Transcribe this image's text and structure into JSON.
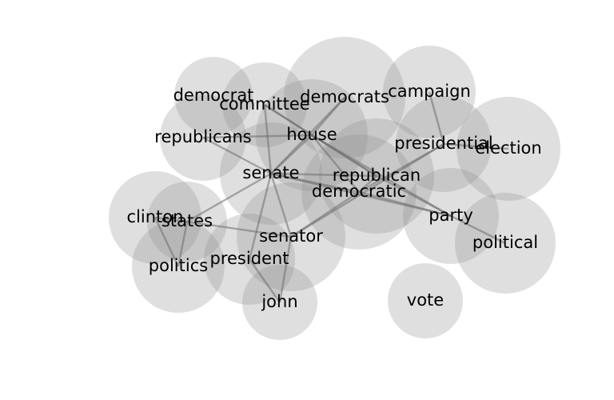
{
  "chart_data": {
    "type": "network",
    "title": "",
    "nodes": [
      {
        "id": "democrat",
        "label": "democrat"
      },
      {
        "id": "committee",
        "label": "committee"
      },
      {
        "id": "democrats",
        "label": "democrats"
      },
      {
        "id": "campaign",
        "label": "campaign"
      },
      {
        "id": "republicans",
        "label": "republicans"
      },
      {
        "id": "house",
        "label": "house"
      },
      {
        "id": "presidential",
        "label": "presidential"
      },
      {
        "id": "election",
        "label": "election"
      },
      {
        "id": "senate",
        "label": "senate"
      },
      {
        "id": "republican",
        "label": "republican"
      },
      {
        "id": "democratic",
        "label": "democratic"
      },
      {
        "id": "clinton",
        "label": "clinton"
      },
      {
        "id": "states",
        "label": "states"
      },
      {
        "id": "party",
        "label": "party"
      },
      {
        "id": "senator",
        "label": "senator"
      },
      {
        "id": "political",
        "label": "political"
      },
      {
        "id": "president",
        "label": "president"
      },
      {
        "id": "politics",
        "label": "politics"
      },
      {
        "id": "john",
        "label": "john"
      },
      {
        "id": "vote",
        "label": "vote"
      }
    ],
    "edges": [
      [
        "committee",
        "senate"
      ],
      [
        "committee",
        "house"
      ],
      [
        "committee",
        "republican"
      ],
      [
        "democrats",
        "house"
      ],
      [
        "democrats",
        "senate"
      ],
      [
        "campaign",
        "presidential"
      ],
      [
        "republicans",
        "house"
      ],
      [
        "republicans",
        "senate"
      ],
      [
        "house",
        "senate"
      ],
      [
        "house",
        "republican"
      ],
      [
        "house",
        "democratic"
      ],
      [
        "house",
        "party"
      ],
      [
        "presidential",
        "election"
      ],
      [
        "presidential",
        "democratic"
      ],
      [
        "presidential",
        "senator"
      ],
      [
        "senate",
        "republican"
      ],
      [
        "senate",
        "democratic"
      ],
      [
        "senate",
        "states"
      ],
      [
        "senate",
        "senator"
      ],
      [
        "senate",
        "president"
      ],
      [
        "senate",
        "party"
      ],
      [
        "republican",
        "democratic"
      ],
      [
        "republican",
        "party"
      ],
      [
        "democratic",
        "senator"
      ],
      [
        "democratic",
        "party"
      ],
      [
        "clinton",
        "states"
      ],
      [
        "clinton",
        "politics"
      ],
      [
        "states",
        "senator"
      ],
      [
        "states",
        "politics"
      ],
      [
        "party",
        "political"
      ],
      [
        "senator",
        "john"
      ],
      [
        "president",
        "john"
      ]
    ]
  }
}
